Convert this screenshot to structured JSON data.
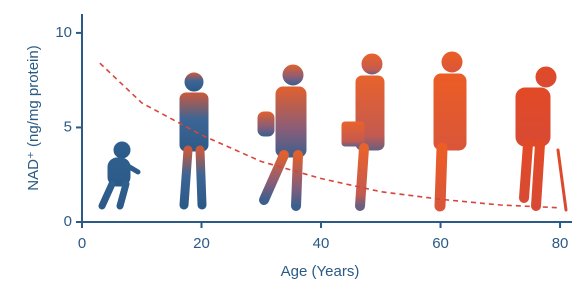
{
  "chart_data": {
    "type": "line",
    "x_label": "Age (Years)",
    "y_label": "NAD⁺ (ng/mg protein)",
    "x": [
      3,
      10,
      20,
      30,
      40,
      50,
      60,
      70,
      80
    ],
    "series": [
      {
        "color": "#d9443a",
        "values": [
          8.4,
          6.3,
          4.6,
          3.2,
          2.3,
          1.6,
          1.2,
          0.9,
          0.75
        ]
      }
    ],
    "xlim": [
      0,
      82
    ],
    "xticks": [
      0,
      20,
      40,
      60,
      80
    ],
    "ylim": [
      0,
      11
    ],
    "yticks": [
      0,
      5,
      10
    ],
    "dashed": true
  }
}
